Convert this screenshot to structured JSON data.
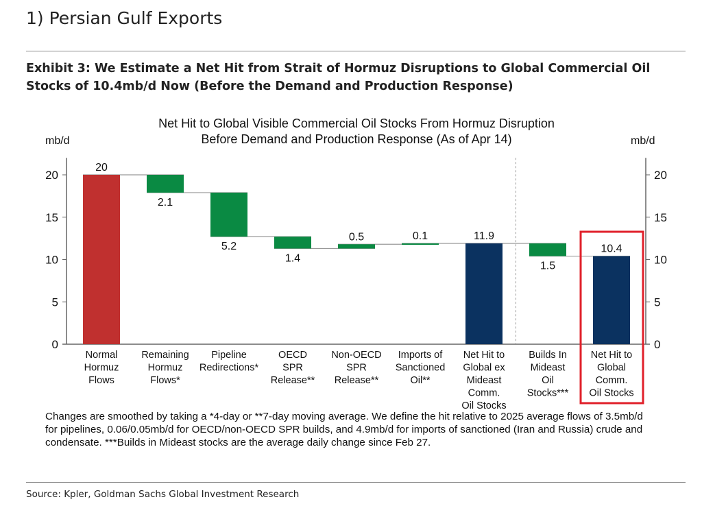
{
  "section_title": "1) Persian Gulf Exports",
  "exhibit_title": "Exhibit 3: We Estimate a Net Hit from Strait of Hormuz Disruptions to Global Commercial Oil Stocks of 10.4mb/d Now (Before the Demand and Production Response)",
  "footnote": "Changes are smoothed by taking a *4-day or **7-day moving average. We define the hit relative to 2025 average flows of 3.5mb/d for pipelines, 0.06/0.05mb/d for OECD/non-OECD SPR builds, and 4.9mb/d for imports of sanctioned (Iran and Russia) crude and condensate. ***Builds in Mideast stocks are the average daily change since Feb 27.",
  "source": "Source: Kpler, Goldman Sachs Global Investment Research",
  "chart_data": {
    "type": "waterfall",
    "title": [
      "Net Hit to Global Visible Commercial Oil Stocks From Hormuz Disruption",
      "Before Demand and Production Response (As of Apr 14)"
    ],
    "ylabel_left": "mb/d",
    "ylabel_right": "mb/d",
    "ylim": [
      0,
      22
    ],
    "yticks": [
      0,
      5,
      10,
      15,
      20
    ],
    "grid": false,
    "colors": {
      "start": "#c0302f",
      "change": "#0a8a43",
      "total": "#0b3260",
      "highlight": "#e0202a",
      "connector": "#999999"
    },
    "highlighted_category": "Net Hit to Global Comm. Oil Stocks",
    "bars": [
      {
        "label": [
          "Normal",
          "Hormuz",
          "Flows"
        ],
        "kind": "start",
        "value": 20,
        "data_label": "20",
        "from": 0,
        "to": 20
      },
      {
        "label": [
          "Remaining",
          "Hormuz",
          "Flows*"
        ],
        "kind": "change",
        "value": -2.1,
        "data_label": "2.1",
        "from": 20,
        "to": 17.9
      },
      {
        "label": [
          "Pipeline",
          "Redirections*"
        ],
        "kind": "change",
        "value": -5.2,
        "data_label": "5.2",
        "from": 17.9,
        "to": 12.7
      },
      {
        "label": [
          "OECD",
          "SPR",
          "Release**"
        ],
        "kind": "change",
        "value": -1.4,
        "data_label": "1.4",
        "from": 12.7,
        "to": 11.3
      },
      {
        "label": [
          "Non-OECD",
          "SPR",
          "Release**"
        ],
        "kind": "change",
        "value": 0.5,
        "data_label": "0.5",
        "from": 11.3,
        "to": 11.8
      },
      {
        "label": [
          "Imports of",
          "Sanctioned",
          "Oil**"
        ],
        "kind": "change",
        "value": 0.1,
        "data_label": "0.1",
        "from": 11.8,
        "to": 11.9
      },
      {
        "label": [
          "Net Hit to",
          "Global ex",
          "Mideast",
          "Comm.",
          "Oil Stocks"
        ],
        "kind": "total",
        "value": 11.9,
        "data_label": "11.9",
        "from": 0,
        "to": 11.9
      },
      {
        "label": [
          "Builds In",
          "Mideast",
          "Oil",
          "Stocks***"
        ],
        "kind": "change",
        "value": -1.5,
        "data_label": "1.5",
        "from": 11.9,
        "to": 10.4
      },
      {
        "label": [
          "Net Hit to",
          "Global",
          "Comm.",
          "Oil Stocks"
        ],
        "kind": "total",
        "value": 10.4,
        "data_label": "10.4",
        "from": 0,
        "to": 10.4
      }
    ]
  }
}
